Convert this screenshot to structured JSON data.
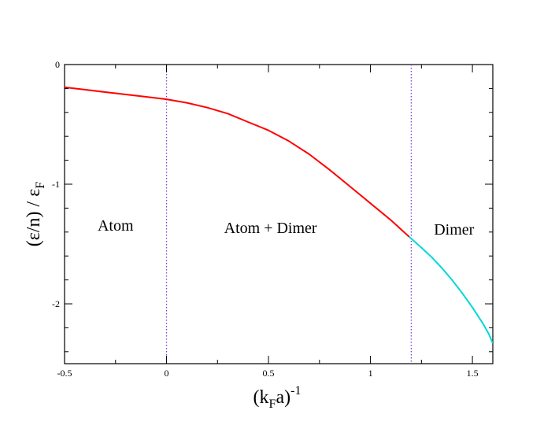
{
  "chart_data": {
    "type": "line",
    "xlabel": {
      "main": "(k",
      "sub": "F",
      "mid": "a)",
      "sup": "-1"
    },
    "ylabel": {
      "main": "(ε/n) / ε",
      "sub": "F"
    },
    "xlim": [
      -0.5,
      1.6
    ],
    "ylim": [
      -2.5,
      0
    ],
    "x_ticks": [
      {
        "value": -0.5,
        "label": "-0.5"
      },
      {
        "value": 0,
        "label": "0"
      },
      {
        "value": 0.5,
        "label": "0.5"
      },
      {
        "value": 1,
        "label": "1"
      },
      {
        "value": 1.5,
        "label": "1.5"
      }
    ],
    "y_ticks": [
      {
        "value": 0,
        "label": "0"
      },
      {
        "value": -1,
        "label": "-1"
      },
      {
        "value": -2,
        "label": "-2"
      }
    ],
    "vlines": [
      {
        "x": 0,
        "color": "#7b3fd0",
        "style": "dotted"
      },
      {
        "x": 1.2,
        "color": "#7b3fd0",
        "style": "dotted"
      }
    ],
    "annotations": [
      {
        "text": "Atom",
        "x": -0.25,
        "y": -1.35
      },
      {
        "text": "Atom + Dimer",
        "x": 0.51,
        "y": -1.37
      },
      {
        "text": "Dimer",
        "x": 1.41,
        "y": -1.38
      }
    ],
    "series": [
      {
        "color": "#ff0000",
        "points": [
          [
            -0.5,
            -0.19
          ],
          [
            -0.4,
            -0.21
          ],
          [
            -0.3,
            -0.23
          ],
          [
            -0.2,
            -0.25
          ],
          [
            -0.1,
            -0.27
          ],
          [
            0,
            -0.29
          ],
          [
            0.1,
            -0.32
          ],
          [
            0.2,
            -0.36
          ],
          [
            0.3,
            -0.41
          ],
          [
            0.4,
            -0.48
          ],
          [
            0.5,
            -0.55
          ],
          [
            0.6,
            -0.64
          ],
          [
            0.7,
            -0.75
          ],
          [
            0.8,
            -0.88
          ],
          [
            0.9,
            -1.02
          ],
          [
            1.0,
            -1.16
          ],
          [
            1.1,
            -1.3
          ],
          [
            1.19,
            -1.44
          ]
        ]
      },
      {
        "color": "#00d8d8",
        "points": [
          [
            1.19,
            -1.44
          ],
          [
            1.25,
            -1.53
          ],
          [
            1.3,
            -1.61
          ],
          [
            1.35,
            -1.7
          ],
          [
            1.4,
            -1.8
          ],
          [
            1.45,
            -1.91
          ],
          [
            1.5,
            -2.03
          ],
          [
            1.55,
            -2.16
          ],
          [
            1.58,
            -2.25
          ],
          [
            1.6,
            -2.33
          ]
        ]
      }
    ]
  }
}
